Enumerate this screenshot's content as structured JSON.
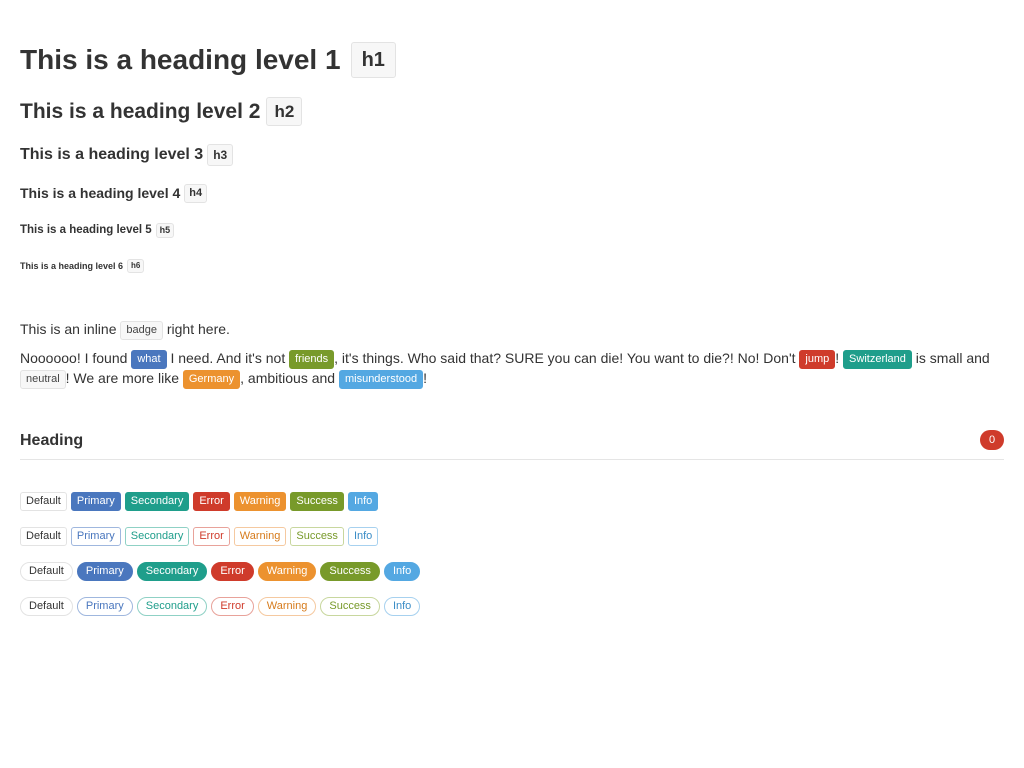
{
  "headings": [
    {
      "text": "This is a heading level 1",
      "badge": "h1"
    },
    {
      "text": "This is a heading level 2",
      "badge": "h2"
    },
    {
      "text": "This is a heading level 3",
      "badge": "h3"
    },
    {
      "text": "This is a heading level 4",
      "badge": "h4"
    },
    {
      "text": "This is a heading level 5",
      "badge": "h5"
    },
    {
      "text": "This is a heading level 6",
      "badge": "h6"
    }
  ],
  "para1": {
    "before": "This is an inline",
    "badge": "badge",
    "after": "right here."
  },
  "para2": {
    "t1": "Noooooo! I found",
    "b1": "what",
    "t2": "I need. And it's not",
    "b2": "friends",
    "t3": ", it's things. Who said that? SURE you can die! You want to die?! No! Don't",
    "b3": "jump",
    "t4": "!",
    "b4": "Switzerland",
    "t5": "is small and",
    "b5": "neutral",
    "t6": "! We are more like",
    "b6": "Germany",
    "t7": ", ambitious and",
    "b7": "misunderstood",
    "t8": "!"
  },
  "section": {
    "title": "Heading",
    "count": "0"
  },
  "badge_labels": {
    "default": "Default",
    "primary": "Primary",
    "secondary": "Secondary",
    "error": "Error",
    "warning": "Warning",
    "success": "Success",
    "info": "Info"
  },
  "colors": {
    "primary": "#4a77be",
    "secondary": "#1f9e8b",
    "error": "#cf3b2b",
    "warning": "#ec922f",
    "success": "#789a2a",
    "info": "#54a8e2"
  }
}
